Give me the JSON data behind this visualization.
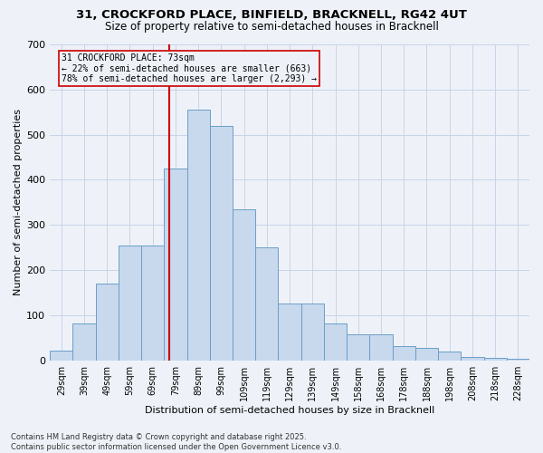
{
  "title_line1": "31, CROCKFORD PLACE, BINFIELD, BRACKNELL, RG42 4UT",
  "title_line2": "Size of property relative to semi-detached houses in Bracknell",
  "xlabel": "Distribution of semi-detached houses by size in Bracknell",
  "ylabel": "Number of semi-detached properties",
  "categories": [
    "29sqm",
    "39sqm",
    "49sqm",
    "59sqm",
    "69sqm",
    "79sqm",
    "89sqm",
    "99sqm",
    "109sqm",
    "119sqm",
    "129sqm",
    "139sqm",
    "149sqm",
    "158sqm",
    "168sqm",
    "178sqm",
    "188sqm",
    "198sqm",
    "208sqm",
    "218sqm",
    "228sqm"
  ],
  "values": [
    22,
    82,
    170,
    255,
    255,
    425,
    555,
    520,
    335,
    250,
    125,
    125,
    82,
    57,
    57,
    32,
    27,
    20,
    8,
    5,
    3
  ],
  "bar_color": "#c8d8ed",
  "bar_edge_color": "#6a9fc8",
  "grid_color": "#c8d4e8",
  "bg_color": "#eef2f8",
  "vline_x": 4.73,
  "vline_color": "#cc0000",
  "annotation_title": "31 CROCKFORD PLACE: 73sqm",
  "annotation_line2": "← 22% of semi-detached houses are smaller (663)",
  "annotation_line3": "78% of semi-detached houses are larger (2,293) →",
  "annotation_box_color": "#cc0000",
  "footer_line1": "Contains HM Land Registry data © Crown copyright and database right 2025.",
  "footer_line2": "Contains public sector information licensed under the Open Government Licence v3.0.",
  "ylim": [
    0,
    700
  ],
  "yticks": [
    0,
    100,
    200,
    300,
    400,
    500,
    600,
    700
  ]
}
